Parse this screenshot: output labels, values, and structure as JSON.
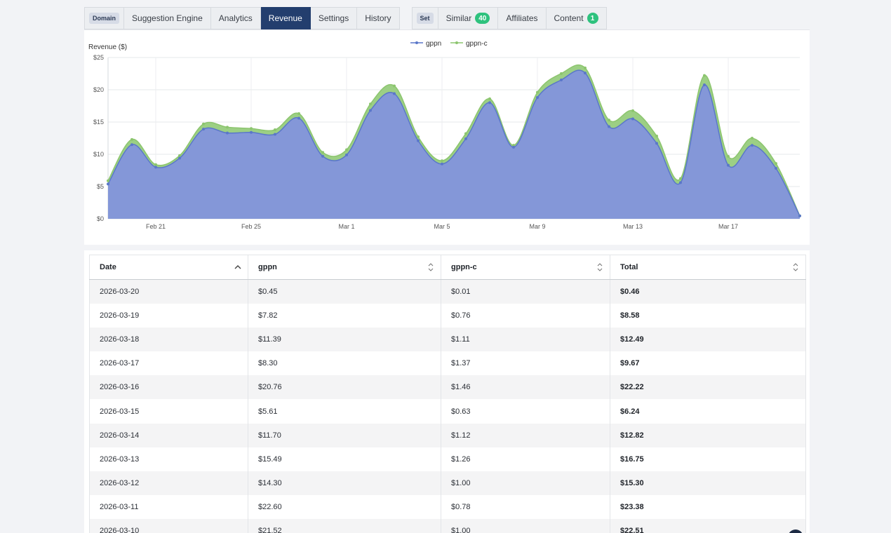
{
  "tabs": {
    "domain_tag": "Domain",
    "domain_tabs": [
      {
        "label": "Suggestion Engine",
        "active": false
      },
      {
        "label": "Analytics",
        "active": false
      },
      {
        "label": "Revenue",
        "active": true
      },
      {
        "label": "Settings",
        "active": false
      },
      {
        "label": "History",
        "active": false
      }
    ],
    "set_tag": "Set",
    "set_tabs": [
      {
        "label": "Similar",
        "badge": "40"
      },
      {
        "label": "Affiliates",
        "badge": ""
      },
      {
        "label": "Content",
        "badge": "1"
      }
    ]
  },
  "colors": {
    "series_gppn": "#5a77c9",
    "series_gppn_c": "#8cc56e",
    "active_tab": "#233e6e",
    "badge": "#2ec27e"
  },
  "chart_data": {
    "type": "area",
    "stacked": true,
    "ylabel": "Revenue ($)",
    "ylim": [
      0,
      25
    ],
    "yticks": [
      "$0",
      "$5",
      "$10",
      "$15",
      "$20",
      "$25"
    ],
    "ytick_values": [
      0,
      5,
      10,
      15,
      20,
      25
    ],
    "xticks": [
      "Feb 21",
      "Feb 25",
      "Mar 1",
      "Mar 5",
      "Mar 9",
      "Mar 13",
      "Mar 17"
    ],
    "xtick_index": [
      2,
      6,
      10,
      14,
      18,
      22,
      26
    ],
    "legend": "top-center",
    "grid": true,
    "x": [
      "2026-02-19",
      "2026-02-20",
      "2026-02-21",
      "2026-02-22",
      "2026-02-23",
      "2026-02-24",
      "2026-02-25",
      "2026-02-26",
      "2026-02-27",
      "2026-02-28",
      "2026-03-01",
      "2026-03-02",
      "2026-03-03",
      "2026-03-04",
      "2026-03-05",
      "2026-03-06",
      "2026-03-07",
      "2026-03-08",
      "2026-03-09",
      "2026-03-10",
      "2026-03-11",
      "2026-03-12",
      "2026-03-13",
      "2026-03-14",
      "2026-03-15",
      "2026-03-16",
      "2026-03-17",
      "2026-03-18",
      "2026-03-19",
      "2026-03-20"
    ],
    "series": [
      {
        "name": "gppn",
        "values": [
          5.4,
          11.5,
          8.0,
          9.4,
          13.9,
          13.3,
          13.4,
          13.1,
          15.6,
          9.7,
          9.9,
          16.8,
          19.4,
          12.1,
          8.5,
          12.4,
          18.0,
          11.1,
          18.8,
          21.52,
          22.6,
          14.3,
          15.49,
          11.7,
          5.61,
          20.76,
          8.3,
          11.39,
          7.82,
          0.45
        ]
      },
      {
        "name": "gppn-c",
        "values": [
          0.5,
          0.8,
          0.4,
          0.4,
          0.8,
          0.9,
          0.6,
          0.7,
          0.7,
          0.6,
          0.8,
          1.0,
          1.2,
          0.6,
          0.5,
          0.8,
          0.6,
          0.3,
          0.8,
          1.0,
          0.78,
          1.0,
          1.26,
          1.12,
          0.63,
          1.46,
          1.37,
          1.11,
          0.76,
          0.01
        ]
      }
    ]
  },
  "table": {
    "columns": [
      "Date",
      "gppn",
      "gppn-c",
      "Total"
    ],
    "rows": [
      [
        "2026-03-20",
        "$0.45",
        "$0.01",
        "$0.46"
      ],
      [
        "2026-03-19",
        "$7.82",
        "$0.76",
        "$8.58"
      ],
      [
        "2026-03-18",
        "$11.39",
        "$1.11",
        "$12.49"
      ],
      [
        "2026-03-17",
        "$8.30",
        "$1.37",
        "$9.67"
      ],
      [
        "2026-03-16",
        "$20.76",
        "$1.46",
        "$22.22"
      ],
      [
        "2026-03-15",
        "$5.61",
        "$0.63",
        "$6.24"
      ],
      [
        "2026-03-14",
        "$11.70",
        "$1.12",
        "$12.82"
      ],
      [
        "2026-03-13",
        "$15.49",
        "$1.26",
        "$16.75"
      ],
      [
        "2026-03-12",
        "$14.30",
        "$1.00",
        "$15.30"
      ],
      [
        "2026-03-11",
        "$22.60",
        "$0.78",
        "$23.38"
      ],
      [
        "2026-03-10",
        "$21.52",
        "$1.00",
        "$22.51"
      ]
    ]
  }
}
